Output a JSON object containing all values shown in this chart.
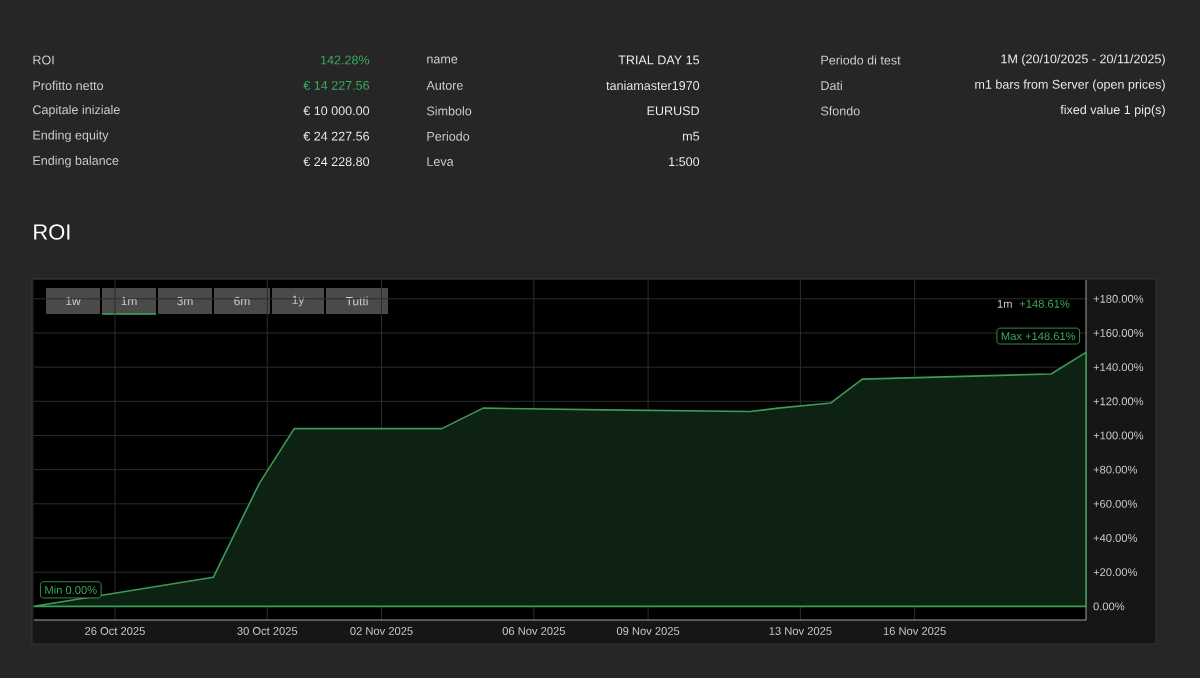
{
  "chart_data": [
    {
      "type": "other",
      "annotations": [
        "ROI",
        "142.28%",
        "Profitto netto",
        "€ 14 227.56",
        "Capitale iniziale",
        "€ 10 000.00",
        "Ending equity",
        "€ 24 227.56",
        "Ending balance",
        "€ 24 228.80",
        "name",
        "TRIAL DAY 15",
        "Autore",
        "taniamaster1970",
        "Simbolo",
        "EURUSD",
        "Periodo",
        "m5",
        "Leva",
        "1:500",
        "Periodo di test",
        "1M (20/10/2025 - 20/11/2025)",
        "Dati",
        "m1 bars from Server (open prices)",
        "Sfondo",
        "fixed value 1 pip(s)"
      ]
    },
    {
      "type": "area",
      "title": "ROI",
      "xlim": [
        "2025-10-23T21:00",
        "2025-11-20T12:00"
      ],
      "ylim": [
        -8,
        191
      ],
      "xticks": [
        {
          "value": "2025-10-26",
          "label": "26 Oct 2025"
        },
        {
          "value": "2025-10-30",
          "label": "30 Oct 2025"
        },
        {
          "value": "2025-11-02",
          "label": "02 Nov 2025"
        },
        {
          "value": "2025-11-06",
          "label": "06 Nov 2025"
        },
        {
          "value": "2025-11-09",
          "label": "09 Nov 2025"
        },
        {
          "value": "2025-11-13",
          "label": "13 Nov 2025"
        },
        {
          "value": "2025-11-16",
          "label": "16 Nov 2025"
        }
      ],
      "yticks": [
        {
          "value": 0,
          "label": "0.00%"
        },
        {
          "value": 20,
          "label": "+20.00%"
        },
        {
          "value": 40,
          "label": "+40.00%"
        },
        {
          "value": 60,
          "label": "+60.00%"
        },
        {
          "value": 80,
          "label": "+80.00%"
        },
        {
          "value": 100,
          "label": "+100.00%"
        },
        {
          "value": 120,
          "label": "+120.00%"
        },
        {
          "value": 140,
          "label": "+140.00%"
        },
        {
          "value": 160,
          "label": "+160.00%"
        },
        {
          "value": 180,
          "label": "+180.00%"
        }
      ],
      "grid": true,
      "series": [
        {
          "color": "#3f9a55",
          "x": [
            "2025-10-23T21:00",
            "2025-10-28T14:00",
            "2025-10-29T19:00",
            "2025-10-30T17:00",
            "2025-11-03T14:00",
            "2025-11-04T16:00",
            "2025-11-07T21:00",
            "2025-11-11T16:00",
            "2025-11-12T10:00",
            "2025-11-13T19:00",
            "2025-11-14T15:00",
            "2025-11-19T14:00",
            "2025-11-20T12:00"
          ],
          "values": [
            0,
            17,
            72,
            104,
            104,
            116,
            115,
            114,
            116,
            119,
            133,
            136,
            148.61
          ]
        }
      ],
      "annotations": [
        "1w",
        "1m",
        "3m",
        "6m",
        "1y",
        "Tutti",
        "1m",
        "+148.61%",
        {
          "text": "Min 0.00%",
          "x": "2025-10-23T21:00",
          "y": 0
        },
        {
          "text": "Max +148.61%",
          "x": "2025-11-20T12:00",
          "y": 148.61
        }
      ]
    }
  ]
}
